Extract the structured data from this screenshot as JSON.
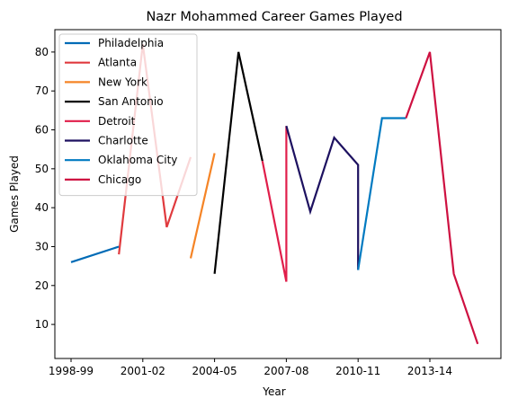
{
  "chart_data": {
    "type": "line",
    "title": "Nazr Mohammed Career Games Played",
    "xlabel": "Year",
    "ylabel": "Games Played",
    "x_categories": [
      "1998-99",
      "1999-00",
      "2000-01",
      "2001-02",
      "2002-03",
      "2003-04",
      "2004-05",
      "2005-06",
      "2006-07",
      "2007-08",
      "2008-09",
      "2009-10",
      "2010-11",
      "2011-12",
      "2012-13",
      "2013-14",
      "2014-15",
      "2015-16"
    ],
    "x_ticks": [
      "1998-99",
      "2001-02",
      "2004-05",
      "2007-08",
      "2010-11",
      "2013-14"
    ],
    "y_ticks": [
      10,
      20,
      30,
      40,
      50,
      60,
      70,
      80
    ],
    "ylim": [
      1.25,
      85.75
    ],
    "grid": false,
    "legend_position": "upper-left",
    "series": [
      {
        "name": "Philadelphia",
        "color": "#006bb6",
        "points": [
          [
            "1998-99",
            26
          ],
          [
            "2000-01",
            30
          ]
        ]
      },
      {
        "name": "Atlanta",
        "color": "#e03a3e",
        "points": [
          [
            "2000-01",
            28
          ],
          [
            "2001-02",
            82
          ],
          [
            "2002-03",
            35
          ],
          [
            "2003-04",
            53
          ]
        ]
      },
      {
        "name": "New York",
        "color": "#f58426",
        "points": [
          [
            "2003-04",
            27
          ],
          [
            "2004-05",
            54
          ]
        ]
      },
      {
        "name": "San Antonio",
        "color": "#000000",
        "points": [
          [
            "2004-05",
            23
          ],
          [
            "2005-06",
            80
          ],
          [
            "2006-07",
            52
          ]
        ]
      },
      {
        "name": "Detroit",
        "color": "#e01e4a",
        "points": [
          [
            "2006-07",
            52
          ],
          [
            "2007-08",
            21
          ],
          [
            "2007-08",
            61
          ]
        ]
      },
      {
        "name": "Charlotte",
        "color": "#1d1160",
        "points": [
          [
            "2007-08",
            61
          ],
          [
            "2008-09",
            39
          ],
          [
            "2009-10",
            58
          ],
          [
            "2010-11",
            51
          ],
          [
            "2010-11",
            24
          ]
        ]
      },
      {
        "name": "Oklahoma City",
        "color": "#007ac1",
        "points": [
          [
            "2010-11",
            24
          ],
          [
            "2011-12",
            63
          ],
          [
            "2012-13",
            63
          ]
        ]
      },
      {
        "name": "Chicago",
        "color": "#ce1141",
        "points": [
          [
            "2012-13",
            63
          ],
          [
            "2013-14",
            80
          ],
          [
            "2014-15",
            23
          ],
          [
            "2015-16",
            5
          ]
        ]
      }
    ]
  }
}
